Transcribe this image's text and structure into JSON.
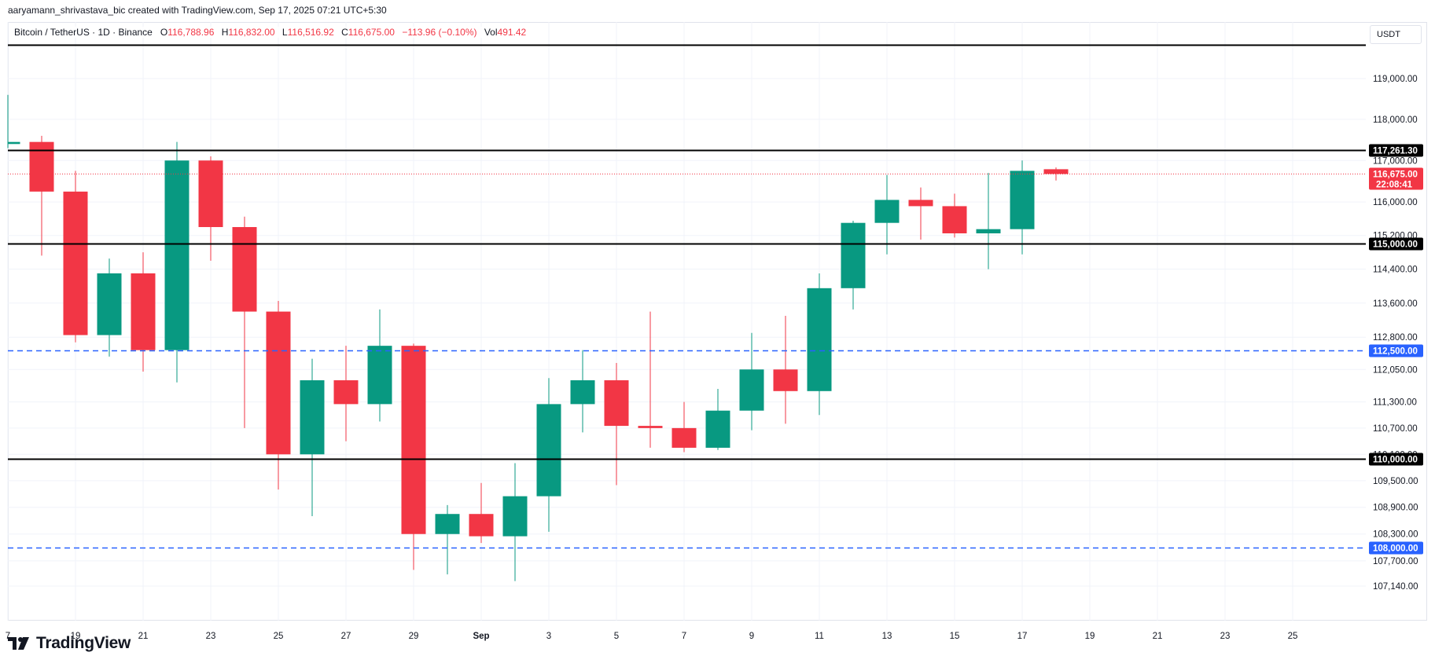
{
  "credit": "aaryamann_shrivastava_bic created with TradingView.com, Sep 17, 2025 07:21 UTC+5:30",
  "legend": {
    "symbol": "Bitcoin / TetherUS · 1D · Binance",
    "o_label": "O",
    "o_value": "116,788.96",
    "h_label": "H",
    "h_value": "116,832.00",
    "l_label": "L",
    "l_value": "116,516.92",
    "c_label": "C",
    "c_value": "116,675.00",
    "change": "−113.96 (−0.10%)",
    "vol_label": "Vol",
    "vol_value": "491.42"
  },
  "currency": "USDT",
  "brand": "TradingView",
  "colors": {
    "up": "#089981",
    "down": "#f23645",
    "support_dashed": "#2962ff",
    "level_line": "#000000",
    "grid": "#f0f3fa",
    "price_tag": "#f23645"
  },
  "chart_data": {
    "type": "candlestick",
    "x_ticks": [
      "7",
      "19",
      "21",
      "23",
      "25",
      "27",
      "29",
      "Sep",
      "3",
      "5",
      "7",
      "9",
      "11",
      "13",
      "15",
      "17",
      "19",
      "21",
      "23",
      "25"
    ],
    "y_ticks": [
      "119,000.00",
      "118,000.00",
      "117,000.00",
      "116,000.00",
      "115,200.00",
      "114,400.00",
      "113,600.00",
      "112,800.00",
      "112,050.00",
      "111,300.00",
      "110,700.00",
      "110,100.00",
      "109,500.00",
      "108,900.00",
      "108,300.00",
      "107,700.00",
      "107,140.00"
    ],
    "y_scale": "log",
    "candles": [
      {
        "date": "Aug 17",
        "o": 117400,
        "h": 118600,
        "l": 117300,
        "c": 117450
      },
      {
        "date": "Aug 18",
        "o": 117450,
        "h": 117600,
        "l": 114720,
        "c": 116250
      },
      {
        "date": "Aug 19",
        "o": 116250,
        "h": 116750,
        "l": 112680,
        "c": 112850
      },
      {
        "date": "Aug 20",
        "o": 112850,
        "h": 114650,
        "l": 112350,
        "c": 114300
      },
      {
        "date": "Aug 21",
        "o": 114300,
        "h": 114800,
        "l": 112000,
        "c": 112500
      },
      {
        "date": "Aug 22",
        "o": 112500,
        "h": 117450,
        "l": 111750,
        "c": 117000
      },
      {
        "date": "Aug 23",
        "o": 117000,
        "h": 117100,
        "l": 114600,
        "c": 115400
      },
      {
        "date": "Aug 24",
        "o": 115400,
        "h": 115650,
        "l": 110700,
        "c": 113400
      },
      {
        "date": "Aug 25",
        "o": 113400,
        "h": 113650,
        "l": 109300,
        "c": 110100
      },
      {
        "date": "Aug 26",
        "o": 110100,
        "h": 112300,
        "l": 108700,
        "c": 111800
      },
      {
        "date": "Aug 27",
        "o": 111800,
        "h": 112600,
        "l": 110400,
        "c": 111250
      },
      {
        "date": "Aug 28",
        "o": 111250,
        "h": 113450,
        "l": 110850,
        "c": 112600
      },
      {
        "date": "Aug 29",
        "o": 112600,
        "h": 112650,
        "l": 107500,
        "c": 108300
      },
      {
        "date": "Aug 30",
        "o": 108300,
        "h": 108950,
        "l": 107400,
        "c": 108750
      },
      {
        "date": "Aug 31",
        "o": 108750,
        "h": 109450,
        "l": 108100,
        "c": 108250
      },
      {
        "date": "Sep 1",
        "o": 108250,
        "h": 109900,
        "l": 107250,
        "c": 109150
      },
      {
        "date": "Sep 2",
        "o": 109150,
        "h": 111850,
        "l": 108350,
        "c": 111250
      },
      {
        "date": "Sep 3",
        "o": 111250,
        "h": 112500,
        "l": 110600,
        "c": 111800
      },
      {
        "date": "Sep 4",
        "o": 111800,
        "h": 112200,
        "l": 109400,
        "c": 110750
      },
      {
        "date": "Sep 5",
        "o": 110750,
        "h": 113400,
        "l": 110250,
        "c": 110700
      },
      {
        "date": "Sep 6",
        "o": 110700,
        "h": 111300,
        "l": 110150,
        "c": 110250
      },
      {
        "date": "Sep 7",
        "o": 110250,
        "h": 111600,
        "l": 110200,
        "c": 111100
      },
      {
        "date": "Sep 8",
        "o": 111100,
        "h": 112900,
        "l": 110650,
        "c": 112050
      },
      {
        "date": "Sep 9",
        "o": 112050,
        "h": 113300,
        "l": 110800,
        "c": 111550
      },
      {
        "date": "Sep 10",
        "o": 111550,
        "h": 114300,
        "l": 111000,
        "c": 113950
      },
      {
        "date": "Sep 11",
        "o": 113950,
        "h": 115550,
        "l": 113450,
        "c": 115500
      },
      {
        "date": "Sep 12",
        "o": 115500,
        "h": 116650,
        "l": 114750,
        "c": 116050
      },
      {
        "date": "Sep 13",
        "o": 116050,
        "h": 116350,
        "l": 115100,
        "c": 115900
      },
      {
        "date": "Sep 14",
        "o": 115900,
        "h": 116200,
        "l": 115150,
        "c": 115250
      },
      {
        "date": "Sep 15",
        "o": 115250,
        "h": 116700,
        "l": 114400,
        "c": 115350
      },
      {
        "date": "Sep 16",
        "o": 115350,
        "h": 117000,
        "l": 114750,
        "c": 116750
      },
      {
        "date": "Sep 17",
        "o": 116788.96,
        "h": 116832,
        "l": 116516.92,
        "c": 116675
      }
    ],
    "horizontal_levels": [
      {
        "value": 119830,
        "style": "solid",
        "label": ""
      },
      {
        "value": 117261.3,
        "style": "solid",
        "label": "117,261.30"
      },
      {
        "value": 115000,
        "style": "solid",
        "label": "115,000.00"
      },
      {
        "value": 112500,
        "style": "dashed",
        "label": "112,500.00"
      },
      {
        "value": 110000,
        "style": "solid",
        "label": "110,000.00"
      },
      {
        "value": 108000,
        "style": "dashed",
        "label": "108,000.00"
      }
    ],
    "last_price": {
      "value": 116675,
      "label": "116,675.00",
      "countdown": "22:08:41"
    }
  }
}
